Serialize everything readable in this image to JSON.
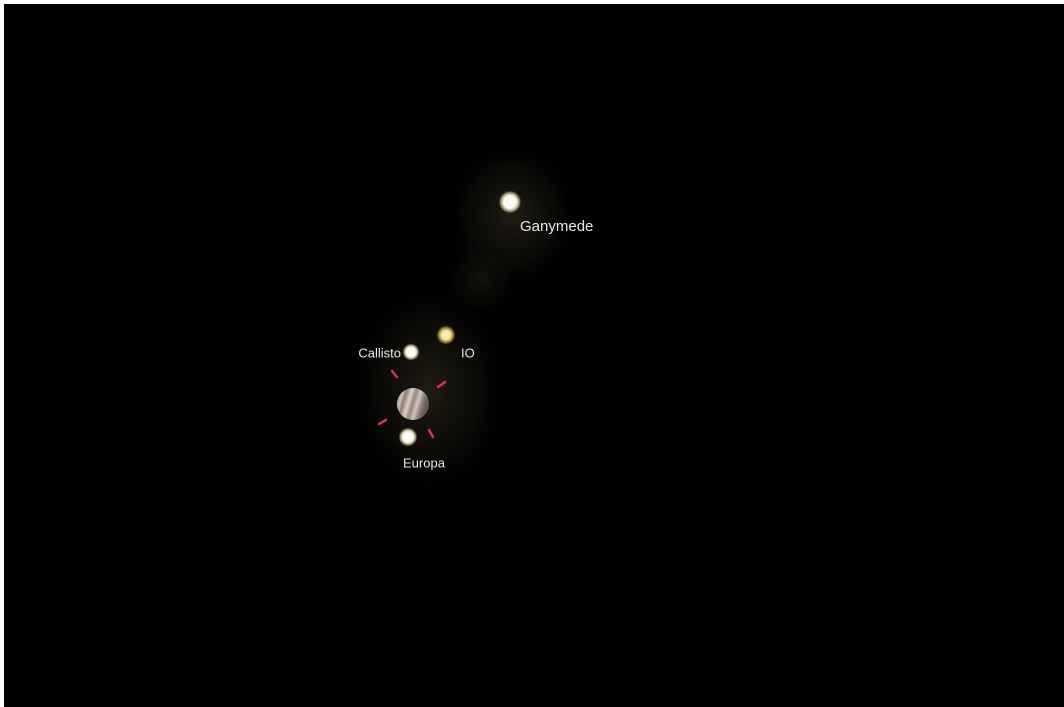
{
  "objects": [
    {
      "label": "Ganymede"
    },
    {
      "label": "Callisto"
    },
    {
      "label": "IO"
    },
    {
      "label": "Europa"
    }
  ]
}
